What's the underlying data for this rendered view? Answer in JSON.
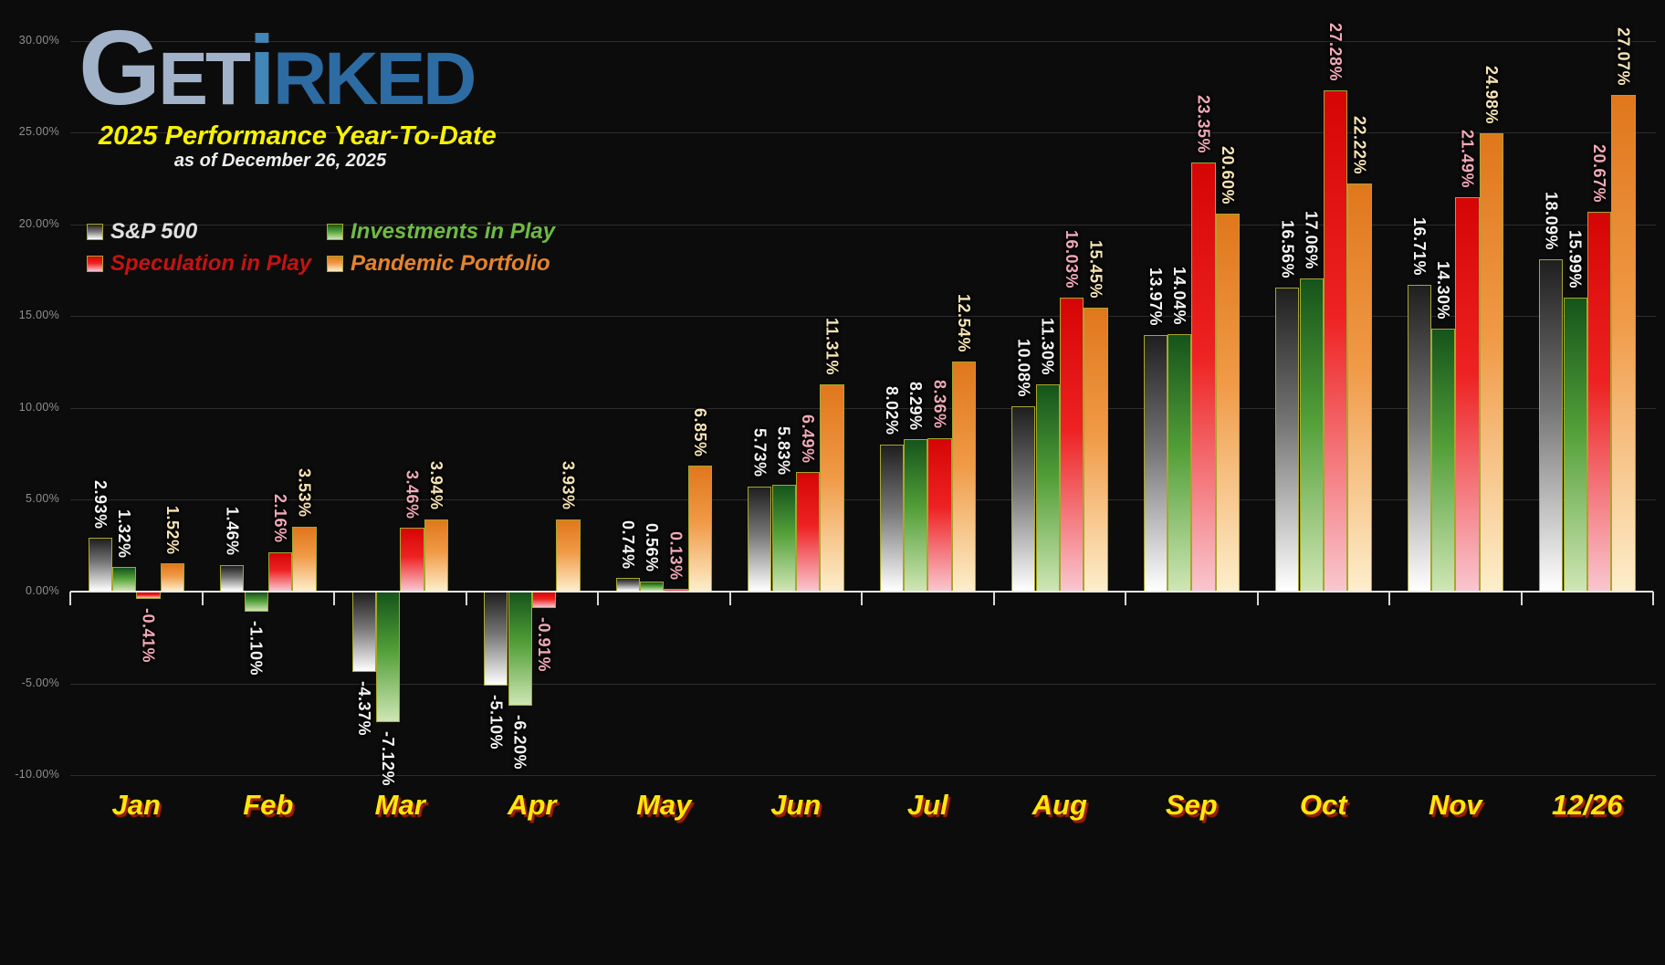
{
  "logo": {
    "g": "G",
    "et": "ET",
    "i": "i",
    "rked": "RKED"
  },
  "header": {
    "title": "2025 Performance Year-To-Date",
    "subtitle": "as of December 26, 2025"
  },
  "colors": {
    "background": "#0c0c0c",
    "bar_border": "#a6a72e",
    "gridline": "#2d2d2d",
    "axis_line": "#e9e9e9",
    "y_label": "#8f8f8f",
    "month_label": "#ffe60a",
    "month_label_shadow": "#9e1e00",
    "title_yellow": "#f8f200",
    "logo_get": "#a2b2c8",
    "logo_i": "#4286b8",
    "logo_rked": "#2d6ba3"
  },
  "chart_data": {
    "type": "bar",
    "title": "2025 Performance Year-To-Date",
    "subtitle": "as of December 26, 2025",
    "categories": [
      "Jan",
      "Feb",
      "Mar",
      "Apr",
      "May",
      "Jun",
      "Jul",
      "Aug",
      "Sep",
      "Oct",
      "Nov",
      "12/26"
    ],
    "series": [
      {
        "name": "S&P 500",
        "values": [
          2.93,
          1.46,
          -4.37,
          -5.1,
          0.74,
          5.73,
          8.02,
          10.08,
          13.97,
          16.56,
          16.71,
          18.09
        ],
        "bar_gradient": [
          "#1f1f1f",
          "#767676",
          "#ffffff"
        ],
        "label_color": "#f5f5f5",
        "legend_text_color": "#e0e0e0"
      },
      {
        "name": "Investments in Play",
        "values": [
          1.32,
          -1.1,
          -7.12,
          -6.2,
          0.56,
          5.83,
          8.29,
          11.3,
          14.04,
          17.06,
          14.3,
          15.99
        ],
        "bar_gradient": [
          "#15541b",
          "#529f38",
          "#cfe6b4"
        ],
        "label_color": "#f5f5f5",
        "legend_text_color": "#6fba45"
      },
      {
        "name": "Speculation in Play",
        "values": [
          -0.41,
          2.16,
          3.46,
          -0.91,
          0.13,
          6.49,
          8.36,
          16.03,
          23.35,
          27.28,
          21.49,
          20.67
        ],
        "bar_gradient": [
          "#d60505",
          "#ee2222",
          "#f9c6cf"
        ],
        "label_color": "#f2a9b7",
        "legend_text_color": "#c51212"
      },
      {
        "name": "Pandemic Portfolio",
        "values": [
          1.52,
          3.53,
          3.94,
          3.93,
          6.85,
          11.31,
          12.54,
          15.45,
          20.6,
          22.22,
          24.98,
          27.07
        ],
        "bar_gradient": [
          "#e0771c",
          "#f09a47",
          "#fdeecb"
        ],
        "label_color": "#f7e4b5",
        "legend_text_color": "#e5832e"
      }
    ],
    "y_axis": {
      "min": -10,
      "max": 30,
      "step": 5,
      "tick_labels": [
        "30.00%",
        "25.00%",
        "20.00%",
        "15.00%",
        "10.00%",
        "5.00%",
        "0.00%",
        "-5.00%",
        "-10.00%"
      ]
    },
    "grid": true,
    "legend_position": "top-left",
    "value_label_format": "0.00%"
  }
}
